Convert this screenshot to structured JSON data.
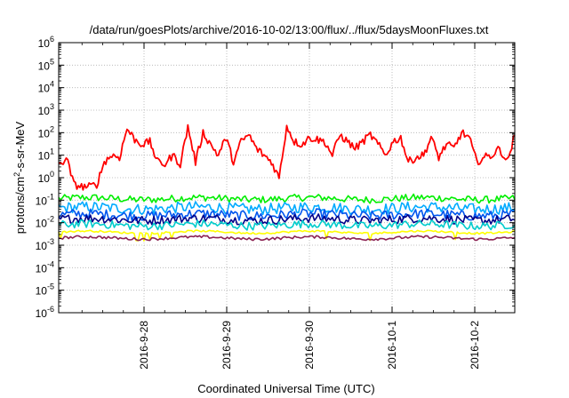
{
  "chart_data": {
    "type": "line",
    "title": "/data/run/goesPlots/archive/2016-10-02/13:00/flux/../flux/5daysMoonFluxes.txt",
    "xlabel": "Coordinated Universal Time (UTC)",
    "ylabel": "protons/cm2-s-sr-MeV",
    "ylabel_parts": {
      "prefix": "protons/cm",
      "sup": "2",
      "suffix": "-s-sr-MeV"
    },
    "yscale": "log",
    "ylim_exponent": [
      -6,
      6
    ],
    "y_ticks": [
      {
        "base": "10",
        "exp": "-6"
      },
      {
        "base": "10",
        "exp": "-5"
      },
      {
        "base": "10",
        "exp": "-4"
      },
      {
        "base": "10",
        "exp": "-3"
      },
      {
        "base": "10",
        "exp": "-2"
      },
      {
        "base": "10",
        "exp": "-1"
      },
      {
        "base": "10",
        "exp": "0"
      },
      {
        "base": "10",
        "exp": "1"
      },
      {
        "base": "10",
        "exp": "2"
      },
      {
        "base": "10",
        "exp": "3"
      },
      {
        "base": "10",
        "exp": "4"
      },
      {
        "base": "10",
        "exp": "5"
      },
      {
        "base": "10",
        "exp": "6"
      }
    ],
    "x_ticks": [
      "2016-9-28",
      "2016-9-29",
      "2016-9-30",
      "2016-10-1",
      "2016-10-2"
    ],
    "xlim_days": [
      "2016-9-27 02:00",
      "2016-10-2 13:00"
    ],
    "grid": true,
    "legend": "none",
    "series": [
      {
        "color": "#ff0000",
        "values_approx": [
          3,
          8,
          0.5,
          0.4,
          0.4,
          0.5,
          5,
          10,
          8,
          150,
          50,
          30,
          40,
          5,
          4,
          10,
          4,
          180,
          5,
          100,
          30,
          10,
          60,
          5,
          40,
          80,
          20,
          10,
          5,
          1,
          200,
          40,
          30,
          60,
          50,
          40,
          10,
          80,
          40,
          20,
          40,
          80,
          30,
          10,
          40,
          60,
          5,
          8,
          10,
          60,
          8,
          30,
          20,
          100,
          60,
          5,
          8,
          10,
          20,
          5,
          80
        ]
      },
      {
        "color": "#00ee00",
        "values_approx": "about 0.1 throughout"
      },
      {
        "color": "#00aaff",
        "values_approx": "about 0.04 throughout"
      },
      {
        "color": "#0055ee",
        "values_approx": "about 0.02 throughout"
      },
      {
        "color": "#000088",
        "values_approx": "about 0.015 throughout"
      },
      {
        "color": "#00cccc",
        "values_approx": "about 0.008 throughout"
      },
      {
        "color": "#ffff00",
        "values_approx": "about 0.004 throughout"
      },
      {
        "color": "#8b2252",
        "values_approx": "about 0.002 throughout"
      }
    ]
  }
}
